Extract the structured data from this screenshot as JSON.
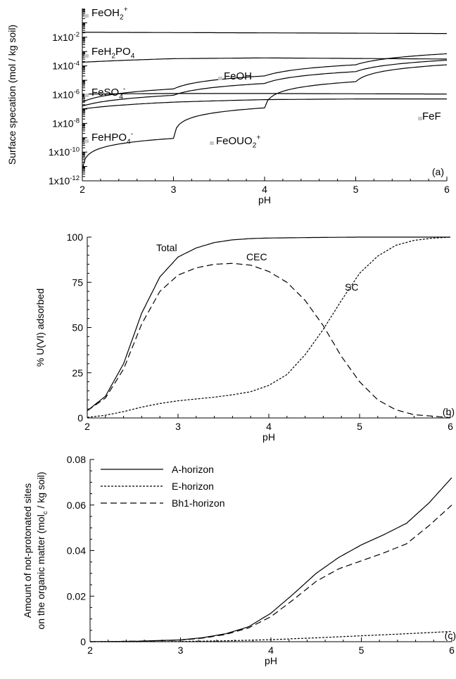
{
  "chart_data": [
    {
      "type": "line",
      "panel_label": "(a)",
      "xlabel": "pH",
      "ylabel": "Surface specation (mol / kg soil)",
      "xlim": [
        2,
        6
      ],
      "ylim": [
        1e-12,
        1
      ],
      "yscale": "log",
      "x_ticks": [
        "2",
        "3",
        "4",
        "5",
        "6"
      ],
      "y_ticks": [
        {
          "base": "1x10",
          "exp": "-2",
          "value": 0.01
        },
        {
          "base": "1x10",
          "exp": "-4",
          "value": 0.0001
        },
        {
          "base": "1x10",
          "exp": "-6",
          "value": 1e-06
        },
        {
          "base": "1x10",
          "exp": "-8",
          "value": 1e-08
        },
        {
          "base": "1x10",
          "exp": "-10",
          "value": 1e-10
        },
        {
          "base": "1x10",
          "exp": "-12",
          "value": 1e-12
        }
      ],
      "annotations": [
        {
          "base": "FeOH",
          "sub": "2",
          "sup": "+"
        },
        {
          "base": "FeH",
          "sub": "2",
          "mid": "PO",
          "sub2": "4"
        },
        {
          "base": "FeOH"
        },
        {
          "base": "FeSO",
          "sub": "4",
          "sup": "-"
        },
        {
          "base": "FeF"
        },
        {
          "base": "FeHPO",
          "sub": "4",
          "sup": "-"
        },
        {
          "base": "FeOUO",
          "sub": "2",
          "sup": "+"
        }
      ],
      "series": [
        {
          "x": [
            2,
            6
          ],
          "y": [
            0.022,
            0.018
          ]
        },
        {
          "x": [
            2,
            3,
            4,
            5,
            6
          ],
          "y": [
            0.00018,
            0.00032,
            0.00036,
            0.00033,
            0.0003
          ]
        },
        {
          "x": [
            2,
            3,
            4,
            5,
            6
          ],
          "y": [
            1.6e-07,
            9e-07,
            6e-06,
            4e-05,
            0.00025
          ]
        },
        {
          "x": [
            2,
            3,
            4,
            5,
            6
          ],
          "y": [
            3e-07,
            2.5e-06,
            2e-05,
            0.00012,
            0.0007
          ]
        },
        {
          "x": [
            2,
            3,
            4,
            5,
            6
          ],
          "y": [
            1.1e-06,
            1.2e-06,
            1.2e-06,
            1.15e-06,
            1.1e-06
          ]
        },
        {
          "x": [
            2,
            3,
            4,
            5,
            6
          ],
          "y": [
            1e-07,
            3e-07,
            4.5e-07,
            5e-07,
            5e-07
          ]
        },
        {
          "x": [
            2,
            3,
            4,
            5,
            6
          ],
          "y": [
            7e-12,
            9e-10,
            1.2e-07,
            8e-06,
            0.00012
          ]
        }
      ]
    },
    {
      "type": "line",
      "panel_label": "(b)",
      "xlabel": "pH",
      "ylabel": "% U(VI) adsorbed",
      "xlim": [
        2,
        6
      ],
      "ylim": [
        0,
        100
      ],
      "x_ticks": [
        "2",
        "3",
        "4",
        "5",
        "6"
      ],
      "y_ticks": [
        "0",
        "25",
        "50",
        "75",
        "100"
      ],
      "series": [
        {
          "name": "Total",
          "style": "solid",
          "x": [
            2,
            2.2,
            2.4,
            2.6,
            2.8,
            3,
            3.2,
            3.4,
            3.6,
            3.8,
            4,
            4.5,
            5,
            5.5,
            6
          ],
          "y": [
            4,
            12,
            30,
            58,
            78,
            89,
            94,
            97,
            98.5,
            99.2,
            99.5,
            99.8,
            100,
            100,
            100
          ]
        },
        {
          "name": "CEC",
          "style": "dashed",
          "x": [
            2,
            2.2,
            2.4,
            2.6,
            2.8,
            3,
            3.2,
            3.4,
            3.6,
            3.8,
            4,
            4.2,
            4.4,
            4.6,
            4.8,
            5,
            5.2,
            5.4,
            5.6,
            6
          ],
          "y": [
            4,
            11,
            27,
            52,
            70,
            79,
            83,
            85,
            85.5,
            84.5,
            81,
            75,
            65,
            51,
            34,
            20,
            10,
            4.5,
            1.8,
            0.2
          ]
        },
        {
          "name": "SC",
          "style": "dotted",
          "x": [
            2,
            2.2,
            2.4,
            2.6,
            2.8,
            3,
            3.2,
            3.4,
            3.6,
            3.8,
            4,
            4.2,
            4.4,
            4.6,
            4.8,
            5,
            5.2,
            5.4,
            5.6,
            5.8,
            6
          ],
          "y": [
            0.3,
            1.5,
            3.5,
            6,
            8,
            9.5,
            10.5,
            11.5,
            12.8,
            14.5,
            18,
            24,
            35,
            49,
            65,
            80,
            89.5,
            95.5,
            98.2,
            99.4,
            100
          ]
        }
      ]
    },
    {
      "type": "line",
      "panel_label": "(c)",
      "xlabel": "pH",
      "ylabel": [
        "Amount of not-protonated sites",
        "on the organic matter (mol",
        "c",
        " / kg soil)"
      ],
      "xlim": [
        2,
        6
      ],
      "ylim": [
        0,
        0.08
      ],
      "x_ticks": [
        "2",
        "3",
        "4",
        "5",
        "6"
      ],
      "y_ticks": [
        "0",
        "0.02",
        "0.04",
        "0.06",
        "0.08"
      ],
      "legend": {
        "position": "top-left"
      },
      "series": [
        {
          "name": "A-horizon",
          "style": "solid",
          "x": [
            2,
            2.5,
            3,
            3.25,
            3.5,
            3.75,
            4,
            4.25,
            4.5,
            4.75,
            5,
            5.25,
            5.5,
            5.75,
            6
          ],
          "y": [
            0,
            0.0002,
            0.0008,
            0.0018,
            0.0035,
            0.0065,
            0.0125,
            0.021,
            0.03,
            0.037,
            0.0425,
            0.047,
            0.052,
            0.061,
            0.072
          ]
        },
        {
          "name": "E-horizon",
          "style": "dotted",
          "x": [
            2,
            2.5,
            3,
            3.5,
            4,
            4.5,
            5,
            5.5,
            6
          ],
          "y": [
            0,
            0,
            0.0001,
            0.0004,
            0.0009,
            0.0017,
            0.0026,
            0.0035,
            0.0045
          ]
        },
        {
          "name": "Bh1-horizon",
          "style": "dashed",
          "x": [
            2,
            2.5,
            3,
            3.25,
            3.5,
            3.75,
            4,
            4.25,
            4.5,
            4.75,
            5,
            5.25,
            5.5,
            5.75,
            6
          ],
          "y": [
            0,
            0.0002,
            0.0007,
            0.0016,
            0.0032,
            0.006,
            0.011,
            0.0185,
            0.0265,
            0.032,
            0.0355,
            0.039,
            0.043,
            0.051,
            0.06
          ]
        }
      ]
    }
  ]
}
